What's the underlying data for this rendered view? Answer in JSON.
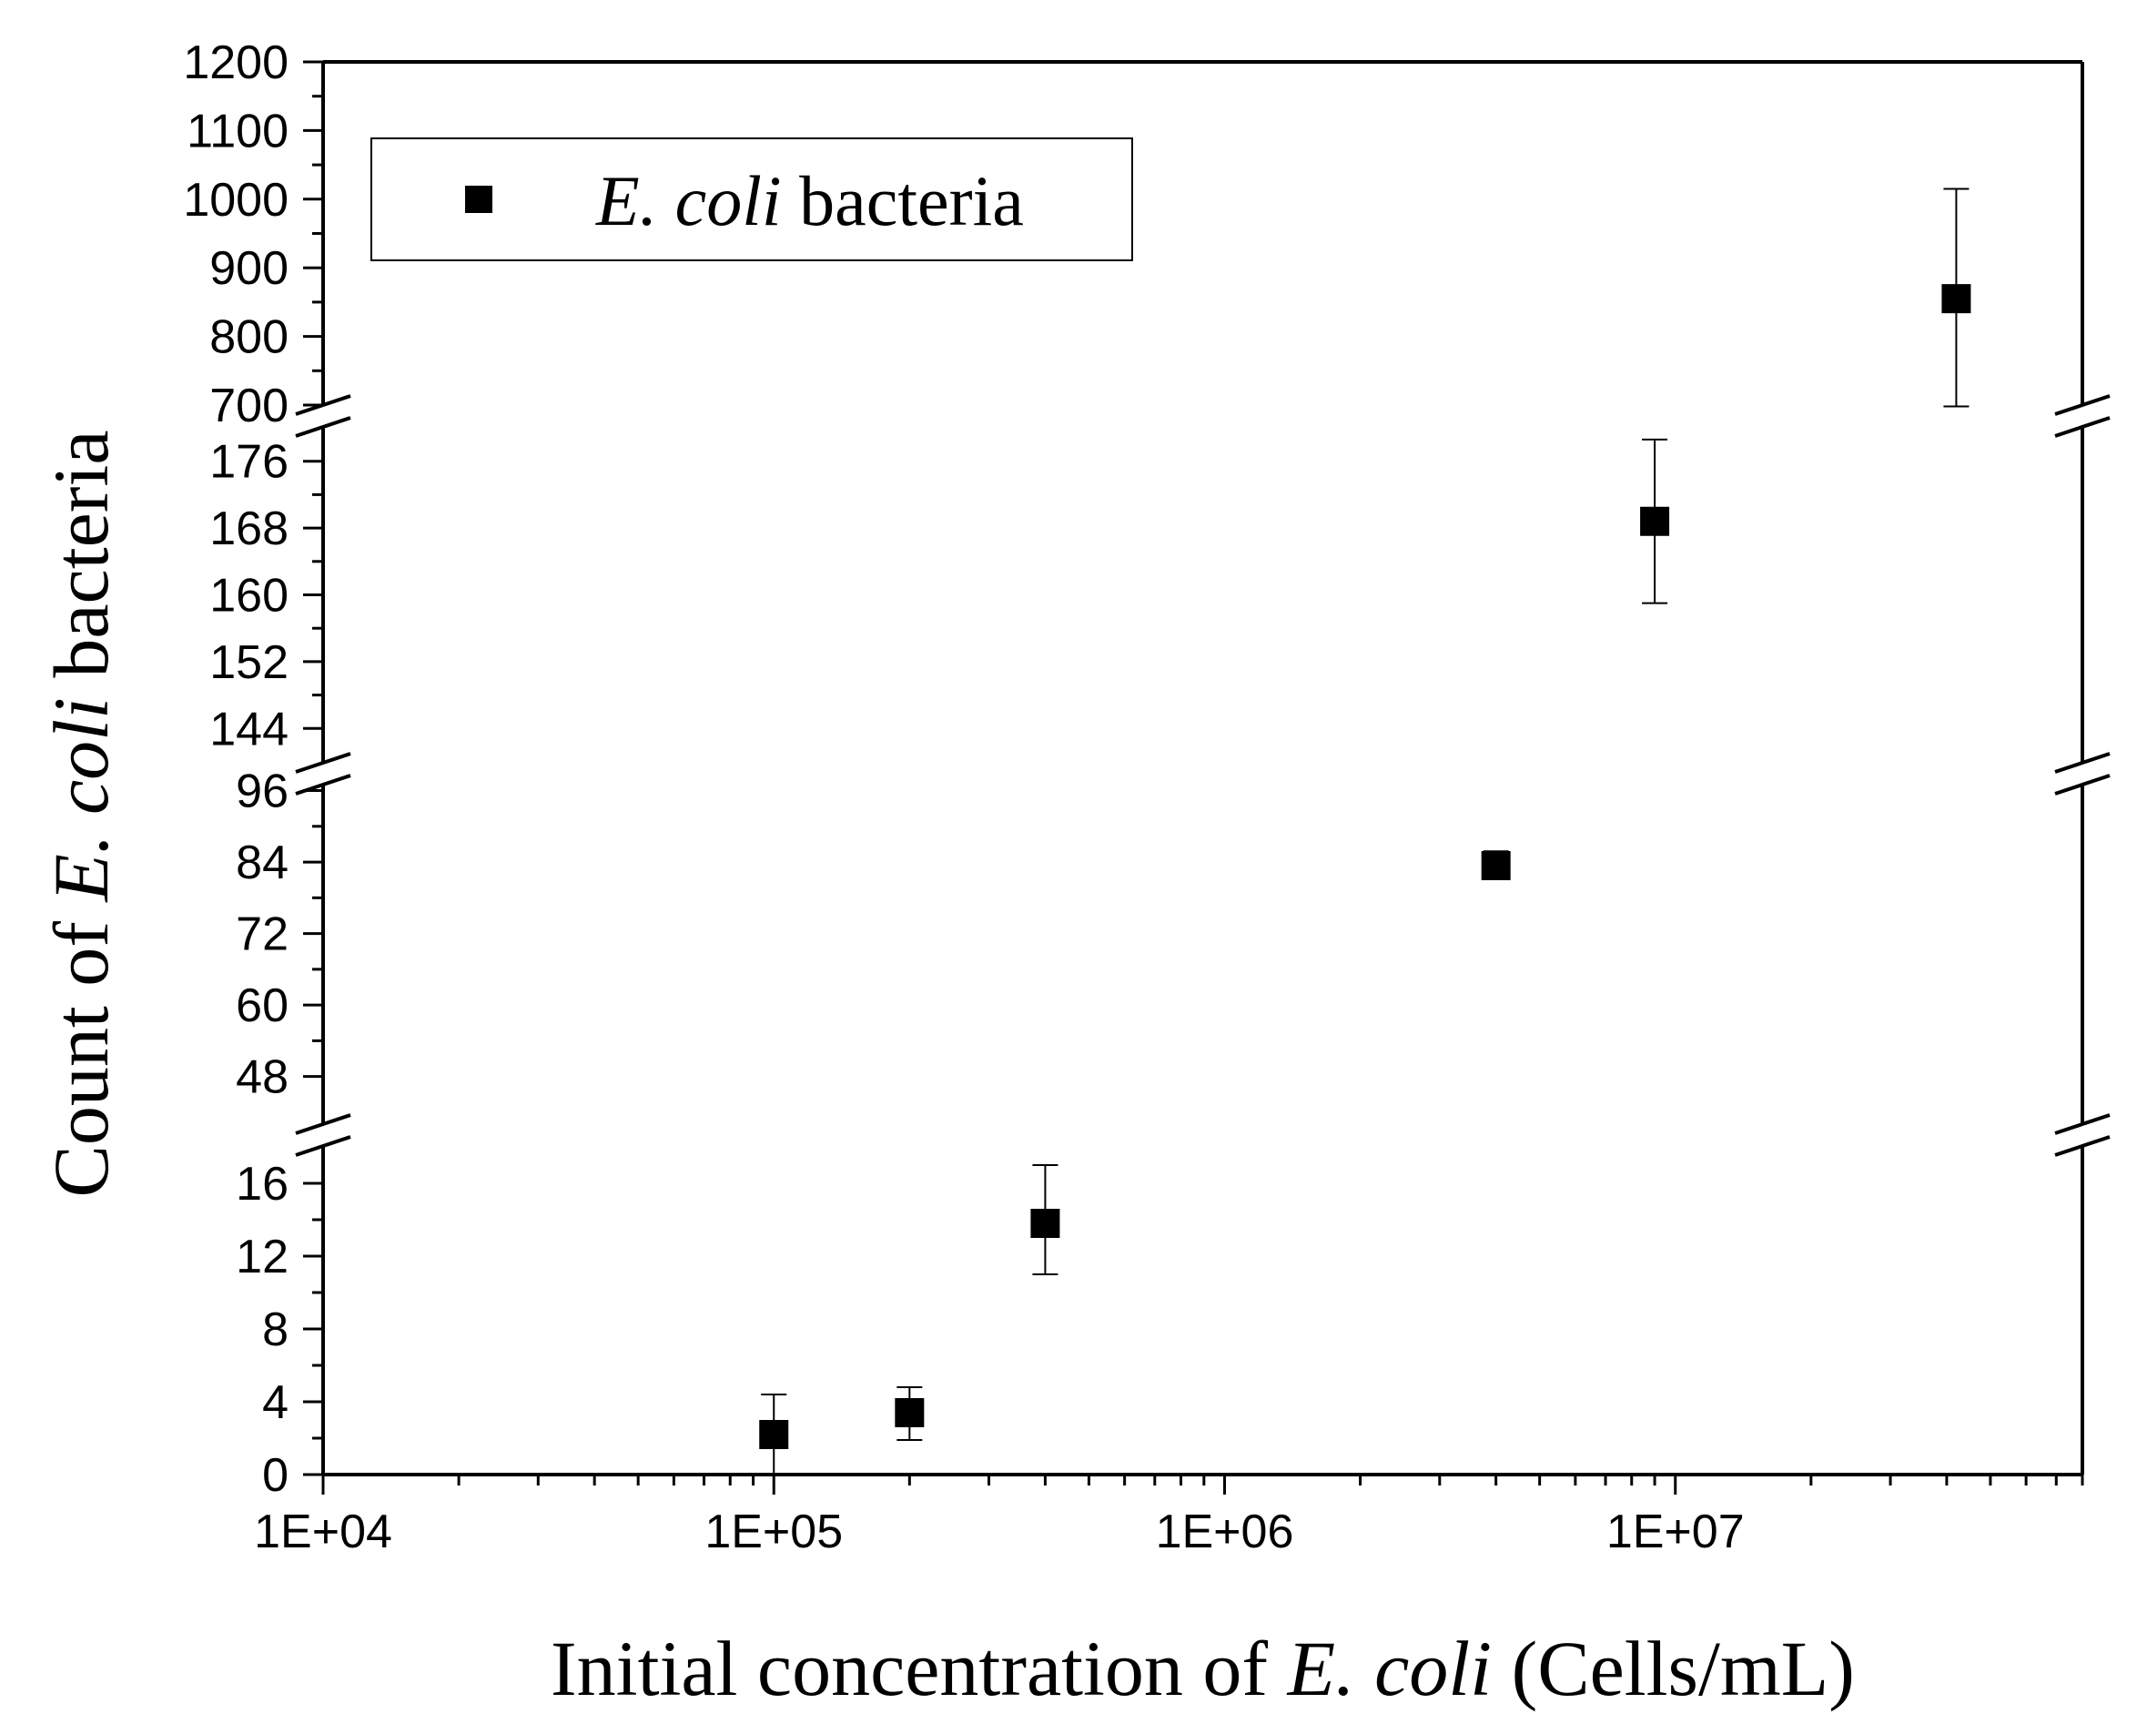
{
  "chart_data": {
    "type": "scatter",
    "xscale": "log",
    "xlim": [
      10000,
      80000000
    ],
    "x_tick_values": [
      10000,
      100000,
      1000000,
      10000000
    ],
    "x_tick_labels": [
      "1E+04",
      "1E+05",
      "1E+06",
      "1E+07"
    ],
    "xlabel": {
      "pre": "Initial concentration of ",
      "italic": "E. coli",
      "post": " (Cells/mL)"
    },
    "ylabel": {
      "pre": "Count of ",
      "italic": "E. coli",
      "post": " bacteria"
    },
    "axis_breaks": true,
    "y_segments": [
      {
        "range": [
          0,
          18
        ],
        "ticks": [
          0,
          4,
          8,
          12,
          16
        ],
        "tick_labels": [
          "0",
          "4",
          "8",
          "12",
          "16"
        ]
      },
      {
        "range": [
          40,
          97
        ],
        "ticks": [
          48,
          60,
          72,
          84,
          96
        ],
        "tick_labels": [
          "48",
          "60",
          "72",
          "84",
          "96"
        ]
      },
      {
        "range": [
          140,
          180
        ],
        "ticks": [
          144,
          152,
          160,
          168,
          176
        ],
        "tick_labels": [
          "144",
          "152",
          "160",
          "168",
          "176"
        ]
      },
      {
        "range": [
          700,
          1200
        ],
        "ticks": [
          700,
          800,
          900,
          1000,
          1100,
          1200
        ],
        "tick_labels": [
          "700",
          "800",
          "900",
          "1000",
          "1100",
          "1200"
        ]
      }
    ],
    "series": [
      {
        "name": "E. coli bacteria",
        "marker": "square",
        "color": "#000000",
        "points": [
          {
            "x": 100000,
            "y": 2.2,
            "err_low": 2.2,
            "err_high": 2.2
          },
          {
            "x": 200000,
            "y": 3.4,
            "err_low": 1.5,
            "err_high": 1.4
          },
          {
            "x": 400000,
            "y": 13.8,
            "err_low": 2.8,
            "err_high": 3.2
          },
          {
            "x": 4000000,
            "y": 83.4,
            "err_low": 1.2,
            "err_high": 2.4
          },
          {
            "x": 9000000,
            "y": 168.8,
            "err_low": 9.8,
            "err_high": 9.8
          },
          {
            "x": 42000000,
            "y": 855,
            "err_low": 157,
            "err_high": 160
          }
        ]
      }
    ],
    "legend": {
      "italic": "E. coli",
      "text": " bacteria",
      "position": "top-left"
    }
  }
}
